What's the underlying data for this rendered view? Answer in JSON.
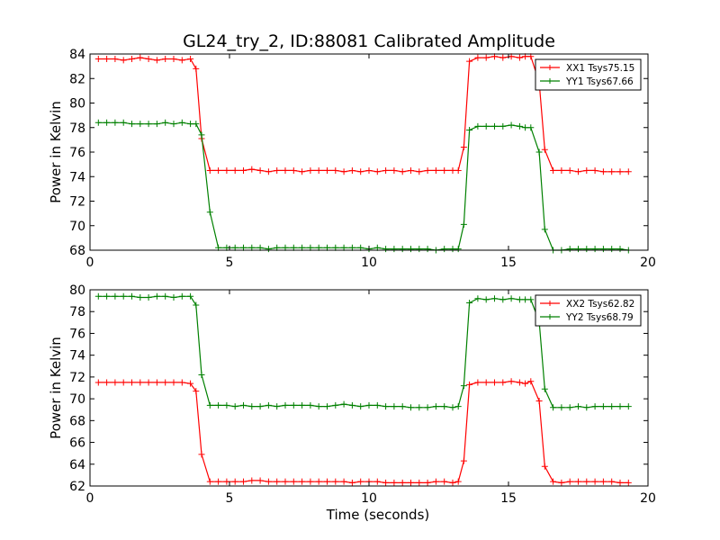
{
  "figure": {
    "title": "GL24_try_2, ID:88081 Calibrated Amplitude"
  },
  "colors": {
    "red": "#ff0000",
    "green": "#008000"
  },
  "chart_data": [
    {
      "type": "line",
      "title": "GL24_try_2, ID:88081 Calibrated Amplitude",
      "xlabel": "",
      "ylabel": "Power in Kelvin",
      "xlim": [
        0,
        20
      ],
      "ylim": [
        68,
        84
      ],
      "xticks": [
        "0",
        "5",
        "10",
        "15",
        "20"
      ],
      "yticks": [
        "68",
        "70",
        "72",
        "74",
        "76",
        "78",
        "80",
        "82",
        "84"
      ],
      "legend_position": "top-right",
      "grid": false,
      "x": [
        0.3,
        0.6,
        0.9,
        1.2,
        1.5,
        1.8,
        2.1,
        2.4,
        2.7,
        3.0,
        3.3,
        3.6,
        3.8,
        4.0,
        4.3,
        4.6,
        4.9,
        5.2,
        5.5,
        5.8,
        6.1,
        6.4,
        6.7,
        7.0,
        7.3,
        7.6,
        7.9,
        8.2,
        8.5,
        8.8,
        9.1,
        9.4,
        9.7,
        10.0,
        10.3,
        10.6,
        10.9,
        11.2,
        11.5,
        11.8,
        12.1,
        12.4,
        12.7,
        13.0,
        13.2,
        13.4,
        13.6,
        13.9,
        14.2,
        14.5,
        14.8,
        15.1,
        15.4,
        15.6,
        15.8,
        16.1,
        16.3,
        16.6,
        16.9,
        17.2,
        17.5,
        17.8,
        18.1,
        18.4,
        18.7,
        19.0,
        19.3
      ],
      "series": [
        {
          "name": "XX1 Tsys75.15",
          "color": "#ff0000",
          "values": [
            83.6,
            83.6,
            83.6,
            83.5,
            83.6,
            83.7,
            83.6,
            83.5,
            83.6,
            83.6,
            83.5,
            83.6,
            82.8,
            77.1,
            74.5,
            74.5,
            74.5,
            74.5,
            74.5,
            74.6,
            74.5,
            74.4,
            74.5,
            74.5,
            74.5,
            74.4,
            74.5,
            74.5,
            74.5,
            74.5,
            74.4,
            74.5,
            74.4,
            74.5,
            74.4,
            74.5,
            74.5,
            74.4,
            74.5,
            74.4,
            74.5,
            74.5,
            74.5,
            74.5,
            74.5,
            76.4,
            83.4,
            83.7,
            83.7,
            83.8,
            83.7,
            83.8,
            83.7,
            83.8,
            83.8,
            81.7,
            76.2,
            74.5,
            74.5,
            74.5,
            74.4,
            74.5,
            74.5,
            74.4,
            74.4,
            74.4,
            74.4
          ]
        },
        {
          "name": "YY1 Tsys67.66",
          "color": "#008000",
          "values": [
            78.4,
            78.4,
            78.4,
            78.4,
            78.3,
            78.3,
            78.3,
            78.3,
            78.4,
            78.3,
            78.4,
            78.3,
            78.3,
            77.4,
            71.1,
            68.2,
            68.2,
            68.2,
            68.2,
            68.2,
            68.2,
            68.1,
            68.2,
            68.2,
            68.2,
            68.2,
            68.2,
            68.2,
            68.2,
            68.2,
            68.2,
            68.2,
            68.2,
            68.1,
            68.2,
            68.1,
            68.1,
            68.1,
            68.1,
            68.1,
            68.1,
            68.0,
            68.1,
            68.1,
            68.1,
            70.1,
            77.8,
            78.1,
            78.1,
            78.1,
            78.1,
            78.2,
            78.1,
            78.0,
            78.0,
            76.0,
            69.7,
            68.0,
            68.0,
            68.1,
            68.1,
            68.1,
            68.1,
            68.1,
            68.1,
            68.1,
            68.0
          ]
        }
      ]
    },
    {
      "type": "line",
      "xlabel": "Time (seconds)",
      "ylabel": "Power in Kelvin",
      "xlim": [
        0,
        20
      ],
      "ylim": [
        62,
        80
      ],
      "xticks": [
        "0",
        "5",
        "10",
        "15",
        "20"
      ],
      "yticks": [
        "62",
        "64",
        "66",
        "68",
        "70",
        "72",
        "74",
        "76",
        "78",
        "80"
      ],
      "legend_position": "top-right",
      "grid": false,
      "x": [
        0.3,
        0.6,
        0.9,
        1.2,
        1.5,
        1.8,
        2.1,
        2.4,
        2.7,
        3.0,
        3.3,
        3.6,
        3.8,
        4.0,
        4.3,
        4.6,
        4.9,
        5.2,
        5.5,
        5.8,
        6.1,
        6.4,
        6.7,
        7.0,
        7.3,
        7.6,
        7.9,
        8.2,
        8.5,
        8.8,
        9.1,
        9.4,
        9.7,
        10.0,
        10.3,
        10.6,
        10.9,
        11.2,
        11.5,
        11.8,
        12.1,
        12.4,
        12.7,
        13.0,
        13.2,
        13.4,
        13.6,
        13.9,
        14.2,
        14.5,
        14.8,
        15.1,
        15.4,
        15.6,
        15.8,
        16.1,
        16.3,
        16.6,
        16.9,
        17.2,
        17.5,
        17.8,
        18.1,
        18.4,
        18.7,
        19.0,
        19.3
      ],
      "series": [
        {
          "name": "XX2 Tsys62.82",
          "color": "#ff0000",
          "values": [
            71.5,
            71.5,
            71.5,
            71.5,
            71.5,
            71.5,
            71.5,
            71.5,
            71.5,
            71.5,
            71.5,
            71.4,
            70.7,
            64.9,
            62.4,
            62.4,
            62.4,
            62.4,
            62.4,
            62.5,
            62.5,
            62.4,
            62.4,
            62.4,
            62.4,
            62.4,
            62.4,
            62.4,
            62.4,
            62.4,
            62.4,
            62.3,
            62.4,
            62.4,
            62.4,
            62.3,
            62.3,
            62.3,
            62.3,
            62.3,
            62.3,
            62.4,
            62.4,
            62.3,
            62.4,
            64.3,
            71.3,
            71.5,
            71.5,
            71.5,
            71.5,
            71.6,
            71.5,
            71.4,
            71.6,
            69.8,
            63.8,
            62.4,
            62.3,
            62.4,
            62.4,
            62.4,
            62.4,
            62.4,
            62.4,
            62.3,
            62.3
          ]
        },
        {
          "name": "YY2 Tsys68.79",
          "color": "#008000",
          "values": [
            79.4,
            79.4,
            79.4,
            79.4,
            79.4,
            79.3,
            79.3,
            79.4,
            79.4,
            79.3,
            79.4,
            79.4,
            78.6,
            72.2,
            69.4,
            69.4,
            69.4,
            69.3,
            69.4,
            69.3,
            69.3,
            69.4,
            69.3,
            69.4,
            69.4,
            69.4,
            69.4,
            69.3,
            69.3,
            69.4,
            69.5,
            69.4,
            69.3,
            69.4,
            69.4,
            69.3,
            69.3,
            69.3,
            69.2,
            69.2,
            69.2,
            69.3,
            69.3,
            69.2,
            69.3,
            71.2,
            78.8,
            79.2,
            79.1,
            79.2,
            79.1,
            79.2,
            79.1,
            79.1,
            79.1,
            77.1,
            70.9,
            69.2,
            69.2,
            69.2,
            69.3,
            69.2,
            69.3,
            69.3,
            69.3,
            69.3,
            69.3
          ]
        }
      ]
    }
  ]
}
